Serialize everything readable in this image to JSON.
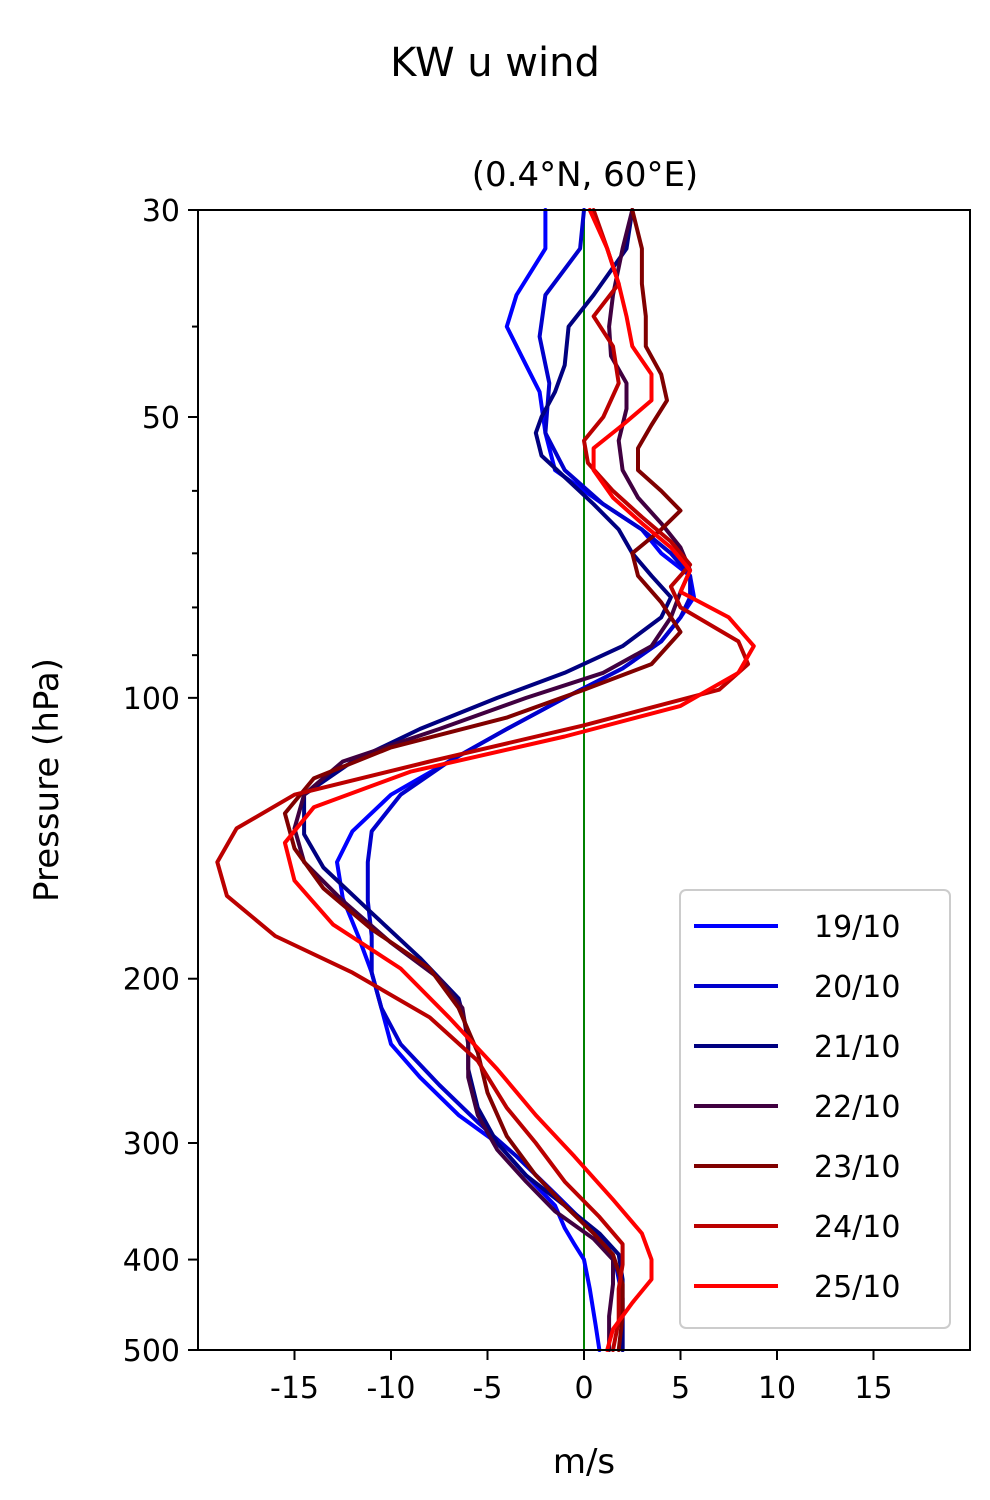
{
  "chart_data": {
    "type": "line",
    "suptitle": "KW u wind",
    "title": "(0.4°N, 60°E)",
    "xlabel": "m/s",
    "ylabel": "Pressure (hPa)",
    "xlim": [
      -20,
      20
    ],
    "ylim": [
      500,
      30
    ],
    "yscale": "log",
    "xticks": [
      {
        "value": -15,
        "label": "-15"
      },
      {
        "value": -10,
        "label": "-10"
      },
      {
        "value": -5,
        "label": "-5"
      },
      {
        "value": 0,
        "label": "0"
      },
      {
        "value": 5,
        "label": "5"
      },
      {
        "value": 10,
        "label": "10"
      },
      {
        "value": 15,
        "label": "15"
      }
    ],
    "yticks": [
      {
        "value": 30,
        "label": "30"
      },
      {
        "value": 50,
        "label": "50"
      },
      {
        "value": 100,
        "label": "100"
      },
      {
        "value": 200,
        "label": "200"
      },
      {
        "value": 300,
        "label": "300"
      },
      {
        "value": 400,
        "label": "400"
      },
      {
        "value": 500,
        "label": "500"
      }
    ],
    "yminor": [
      40,
      60,
      70,
      80,
      90
    ],
    "zero_line": {
      "value": 0,
      "color": "#008000"
    },
    "legend_position": "lower right",
    "series": [
      {
        "name": "19/10",
        "color": "#0000ff",
        "x": [
          -2,
          -2,
          -3.5,
          -4,
          -3,
          -2.3,
          -2,
          -1.5,
          1,
          3,
          4,
          5.5,
          5.7,
          5,
          4,
          2,
          -1,
          -4,
          -7,
          -10,
          -12,
          -12.8,
          -12.5,
          -11.7,
          -11,
          -10.5,
          -10,
          -8.5,
          -6.5,
          -4.5,
          -3,
          -1.5,
          -1,
          -0.5,
          0,
          0.3,
          0.6,
          0.8
        ],
        "y": [
          30,
          33,
          37,
          40,
          44,
          47,
          52,
          57,
          62,
          66,
          70,
          74,
          78,
          82,
          87,
          93,
          100,
          108,
          117,
          127,
          139,
          150,
          164,
          180,
          197,
          215,
          235,
          255,
          280,
          300,
          325,
          350,
          370,
          385,
          400,
          430,
          470,
          500
        ]
      },
      {
        "name": "20/10",
        "color": "#0000cc",
        "x": [
          0,
          -0.2,
          -2,
          -2.3,
          -1.8,
          -2,
          -1,
          1,
          3,
          4.5,
          5.5,
          5.5,
          5,
          4,
          2,
          -1,
          -4,
          -7,
          -9.5,
          -11,
          -11.2,
          -11.2,
          -11,
          -11,
          -10.5,
          -9.5,
          -7.5,
          -5.5,
          -3.5,
          -1.5,
          0.3,
          1.3,
          1.7,
          2,
          2,
          2
        ],
        "y": [
          30,
          33,
          37,
          41,
          46,
          52,
          57,
          62,
          66,
          70,
          74,
          78,
          82,
          87,
          93,
          100,
          108,
          117,
          127,
          139,
          150,
          165,
          180,
          197,
          215,
          235,
          260,
          285,
          310,
          340,
          370,
          390,
          410,
          440,
          470,
          500
        ]
      },
      {
        "name": "21/10",
        "color": "#000080",
        "x": [
          2.5,
          2.2,
          0.5,
          -0.8,
          -1,
          -1.5,
          -2.2,
          -2.5,
          -2.2,
          -1,
          0.5,
          1.8,
          2.5,
          3.5,
          4.5,
          4,
          2,
          -1,
          -4.5,
          -8.5,
          -12,
          -14.5,
          -14.5,
          -13.5,
          -11,
          -8.5,
          -6.5,
          -6,
          -6,
          -5.5,
          -4.5,
          -3,
          -1,
          0.8,
          1.8,
          2,
          2,
          2
        ],
        "y": [
          30,
          33,
          37,
          40,
          44,
          47,
          50,
          52,
          55,
          58,
          62,
          66,
          70,
          74,
          78,
          82,
          88,
          94,
          100,
          108,
          117,
          127,
          140,
          152,
          170,
          190,
          210,
          230,
          250,
          275,
          300,
          325,
          350,
          375,
          395,
          420,
          460,
          500
        ]
      },
      {
        "name": "22/10",
        "color": "#400040",
        "x": [
          2.5,
          2,
          1.5,
          1.3,
          1.4,
          2.2,
          2.2,
          1.8,
          2,
          2.8,
          4,
          5,
          5.5,
          5,
          4.5,
          3.5,
          1,
          -3,
          -7.5,
          -12.5,
          -14.5,
          -15,
          -14.5,
          -12.5,
          -10,
          -7.5,
          -6.3,
          -6,
          -6,
          -5.5,
          -4.5,
          -3,
          -1.5,
          0.5,
          1.5,
          1.5,
          1.3,
          1.3
        ],
        "y": [
          30,
          33,
          37,
          40,
          43,
          46,
          49,
          53,
          57,
          61,
          65,
          69,
          73,
          77,
          82,
          88,
          94,
          100,
          108,
          117,
          127,
          138,
          150,
          165,
          183,
          200,
          215,
          235,
          255,
          280,
          305,
          330,
          355,
          380,
          400,
          425,
          460,
          500
        ]
      },
      {
        "name": "23/10",
        "color": "#800000",
        "x": [
          2.5,
          3,
          3,
          3.2,
          3.2,
          4,
          4.3,
          3.5,
          2.8,
          2.8,
          4,
          5,
          4,
          2.5,
          2.8,
          4,
          5,
          3.5,
          0,
          -4,
          -10,
          -14,
          -15.5,
          -15,
          -13.5,
          -11,
          -8,
          -6.5,
          -5.5,
          -5,
          -4,
          -2.5,
          -1,
          0.5,
          1.5,
          2,
          2,
          1.8
        ],
        "y": [
          30,
          33,
          36,
          39,
          42,
          45,
          48,
          51,
          54,
          57,
          60,
          63,
          66,
          70,
          74,
          79,
          85,
          92,
          98,
          105,
          113,
          122,
          133,
          145,
          160,
          177,
          195,
          215,
          240,
          265,
          295,
          325,
          350,
          375,
          395,
          425,
          460,
          500
        ]
      },
      {
        "name": "24/10",
        "color": "#bb0000",
        "x": [
          0.5,
          1.2,
          1.8,
          0.5,
          1.5,
          1.8,
          1,
          0,
          0.2,
          1.5,
          3,
          4.5,
          5.5,
          4.5,
          5,
          8,
          8.5,
          7,
          0,
          -8,
          -15,
          -18,
          -19,
          -18.5,
          -16,
          -12,
          -8,
          -5.5,
          -4,
          -2.5,
          -1,
          0.8,
          2,
          2,
          1.8,
          1.8,
          1.5
        ],
        "y": [
          30,
          33,
          36,
          39,
          42,
          46,
          50,
          53,
          56,
          60,
          64,
          68,
          72,
          76,
          80,
          87,
          92,
          98,
          107,
          117,
          127,
          138,
          150,
          163,
          180,
          197,
          220,
          245,
          275,
          300,
          330,
          360,
          385,
          405,
          430,
          465,
          500
        ]
      },
      {
        "name": "25/10",
        "color": "#ff0000",
        "x": [
          0.3,
          1.2,
          1.8,
          2.2,
          2.5,
          3.5,
          3.5,
          2,
          0.5,
          0.5,
          1.5,
          3,
          4.5,
          5.5,
          5,
          7.5,
          8.8,
          8,
          5,
          -1,
          -9,
          -14,
          -15.5,
          -15,
          -13,
          -9.5,
          -7,
          -4.5,
          -2.5,
          -0.5,
          1.5,
          3,
          3.5,
          3.5,
          2.5,
          1.5,
          1.2
        ],
        "y": [
          30,
          33,
          36,
          39,
          42,
          45,
          48,
          51,
          54,
          57,
          61,
          65,
          69,
          73,
          77,
          82,
          88,
          94,
          102,
          110,
          120,
          131,
          143,
          157,
          175,
          195,
          220,
          250,
          280,
          310,
          345,
          375,
          400,
          420,
          445,
          475,
          500
        ]
      }
    ]
  }
}
